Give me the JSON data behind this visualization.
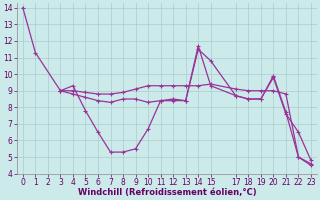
{
  "xlabel": "Windchill (Refroidissement éolien,°C)",
  "bg_color": "#cceaea",
  "grid_color": "#aacccc",
  "line_color": "#993399",
  "xlim": [
    -0.5,
    23.5
  ],
  "ylim": [
    4,
    14.3
  ],
  "xticks": [
    0,
    1,
    2,
    3,
    4,
    5,
    6,
    7,
    8,
    9,
    10,
    11,
    12,
    13,
    14,
    15,
    17,
    18,
    19,
    20,
    21,
    22,
    23
  ],
  "yticks": [
    4,
    5,
    6,
    7,
    8,
    9,
    10,
    11,
    12,
    13,
    14
  ],
  "lines": [
    {
      "x": [
        0,
        1,
        3,
        4,
        5,
        6,
        7,
        8,
        9,
        10,
        11,
        12,
        13,
        14,
        15,
        17,
        18,
        19,
        20,
        21,
        22,
        23
      ],
      "y": [
        14,
        11.3,
        9.0,
        9.3,
        7.8,
        6.5,
        5.3,
        5.3,
        5.5,
        6.7,
        8.4,
        8.5,
        8.4,
        11.7,
        9.3,
        8.7,
        8.5,
        8.5,
        9.9,
        7.7,
        5.0,
        4.6
      ]
    },
    {
      "x": [
        3,
        4,
        5,
        6,
        7,
        8,
        9,
        10,
        11,
        12,
        13,
        14,
        15,
        17,
        18,
        19,
        20,
        21,
        22,
        23
      ],
      "y": [
        9.0,
        9.0,
        8.9,
        8.8,
        8.8,
        8.9,
        9.1,
        9.3,
        9.3,
        9.3,
        9.3,
        9.3,
        9.4,
        9.1,
        9.0,
        9.0,
        9.0,
        8.8,
        5.0,
        4.5
      ]
    },
    {
      "x": [
        3,
        4,
        5,
        6,
        7,
        8,
        9,
        10,
        11,
        12,
        13,
        14,
        15,
        17,
        18,
        19,
        20,
        21,
        22,
        23
      ],
      "y": [
        9.0,
        8.8,
        8.6,
        8.4,
        8.3,
        8.5,
        8.5,
        8.3,
        8.4,
        8.4,
        8.4,
        11.5,
        10.8,
        8.7,
        8.5,
        8.5,
        9.8,
        7.6,
        6.5,
        4.8
      ]
    }
  ],
  "marker": "+",
  "markersize": 3,
  "markeredgewidth": 0.8,
  "linewidth": 0.9,
  "xlabel_color": "#660066",
  "xlabel_fontsize": 6.0,
  "tick_fontsize": 5.5,
  "tick_color": "#660066"
}
